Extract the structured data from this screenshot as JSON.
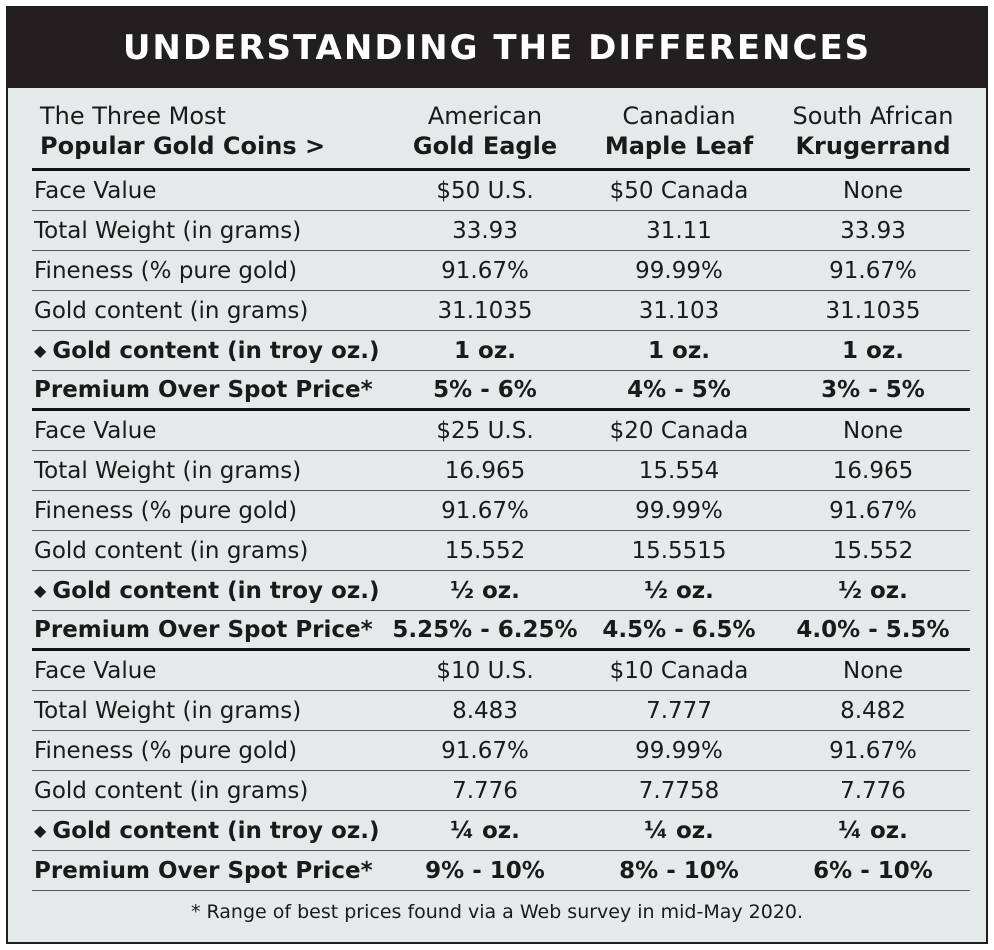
{
  "title": "UNDERSTANDING THE DIFFERENCES",
  "header": {
    "row_label_line1": "The Three Most",
    "row_label_line2": "Popular Gold Coins >",
    "coins": [
      {
        "line1": "American",
        "line2": "Gold Eagle"
      },
      {
        "line1": "Canadian",
        "line2": "Maple Leaf"
      },
      {
        "line1": "South African",
        "line2": "Krugerrand"
      }
    ]
  },
  "bullet_glyph": "◆",
  "sections": [
    {
      "rows": [
        {
          "label": "Face Value",
          "values": [
            "$50 U.S.",
            "$50 Canada",
            "None"
          ]
        },
        {
          "label": "Total Weight (in grams)",
          "values": [
            "33.93",
            "31.11",
            "33.93"
          ]
        },
        {
          "label": "Fineness (% pure gold)",
          "values": [
            "91.67%",
            "99.99%",
            "91.67%"
          ]
        },
        {
          "label": "Gold content (in grams)",
          "values": [
            "31.1035",
            "31.103",
            "31.1035"
          ]
        },
        {
          "label": "Gold content (in troy oz.)",
          "values": [
            "1 oz.",
            "1 oz.",
            "1 oz."
          ]
        },
        {
          "label": "Premium Over Spot Price*",
          "values": [
            "5% - 6%",
            "4% - 5%",
            "3% - 5%"
          ]
        }
      ]
    },
    {
      "rows": [
        {
          "label": "Face Value",
          "values": [
            "$25 U.S.",
            "$20 Canada",
            "None"
          ]
        },
        {
          "label": "Total Weight (in grams)",
          "values": [
            "16.965",
            "15.554",
            "16.965"
          ]
        },
        {
          "label": "Fineness (% pure gold)",
          "values": [
            "91.67%",
            "99.99%",
            "91.67%"
          ]
        },
        {
          "label": "Gold content (in grams)",
          "values": [
            "15.552",
            "15.5515",
            "15.552"
          ]
        },
        {
          "label": "Gold content (in troy oz.)",
          "values": [
            "½ oz.",
            "½ oz.",
            "½ oz."
          ]
        },
        {
          "label": "Premium Over Spot Price*",
          "values": [
            "5.25% - 6.25%",
            "4.5% - 6.5%",
            "4.0% - 5.5%"
          ]
        }
      ]
    },
    {
      "rows": [
        {
          "label": "Face Value",
          "values": [
            "$10 U.S.",
            "$10 Canada",
            "None"
          ]
        },
        {
          "label": "Total Weight (in grams)",
          "values": [
            "8.483",
            "7.777",
            "8.482"
          ]
        },
        {
          "label": "Fineness (% pure gold)",
          "values": [
            "91.67%",
            "99.99%",
            "91.67%"
          ]
        },
        {
          "label": "Gold content (in grams)",
          "values": [
            "7.776",
            "7.7758",
            "7.776"
          ]
        },
        {
          "label": "Gold content (in troy oz.)",
          "values": [
            "¼ oz.",
            "¼ oz.",
            "¼ oz."
          ]
        },
        {
          "label": "Premium Over Spot Price*",
          "values": [
            "9% - 10%",
            "8% - 10%",
            "6% - 10%"
          ]
        }
      ]
    }
  ],
  "footnote": "* Range of best prices found via a Web survey in mid-May 2020."
}
